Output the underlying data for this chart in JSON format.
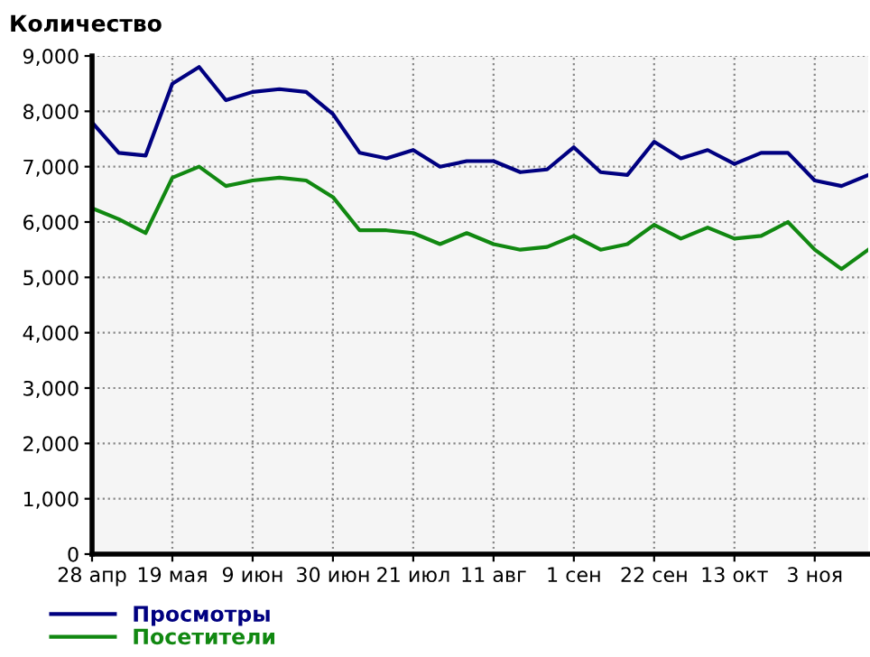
{
  "chart_data": {
    "type": "line",
    "title": "Количество",
    "categories": [
      "28 апр",
      null,
      null,
      "19 мая",
      null,
      null,
      "9 июн",
      null,
      null,
      "30 июн",
      null,
      null,
      "21 июл",
      null,
      null,
      "11 авг",
      null,
      null,
      "1 сен",
      null,
      null,
      "22 сен",
      null,
      null,
      "13 окт",
      null,
      null,
      "3 ноя",
      null,
      null
    ],
    "series": [
      {
        "name": "Просмотры",
        "color": "#000080",
        "values": [
          7800,
          7250,
          7200,
          8500,
          8800,
          8200,
          8350,
          8400,
          8350,
          7950,
          7250,
          7150,
          7300,
          7000,
          7100,
          7100,
          6900,
          6950,
          7350,
          6900,
          6850,
          7450,
          7150,
          7300,
          7050,
          7250,
          7250,
          6750,
          6650,
          6850
        ]
      },
      {
        "name": "Посетители",
        "color": "#118811",
        "values": [
          6250,
          6050,
          5800,
          6800,
          7000,
          6650,
          6750,
          6800,
          6750,
          6450,
          5850,
          5850,
          5800,
          5600,
          5800,
          5600,
          5500,
          5550,
          5750,
          5500,
          5600,
          5950,
          5700,
          5900,
          5700,
          5750,
          6000,
          5500,
          5150,
          5500
        ]
      }
    ],
    "ylim": [
      0,
      9000
    ],
    "yticks": [
      0,
      {
        "value": 1000,
        "label": "1,000"
      },
      {
        "value": 2000,
        "label": "2,000"
      },
      {
        "value": 3000,
        "label": "3,000"
      },
      {
        "value": 4000,
        "label": "4,000"
      },
      {
        "value": 5000,
        "label": "5,000"
      },
      {
        "value": 6000,
        "label": "6,000"
      },
      {
        "value": 7000,
        "label": "7,000"
      },
      {
        "value": 8000,
        "label": "8,000"
      },
      {
        "value": 9000,
        "label": "9,000"
      }
    ],
    "grid": true,
    "legend": "bottom left",
    "marker": "none",
    "line_style": "solid"
  }
}
